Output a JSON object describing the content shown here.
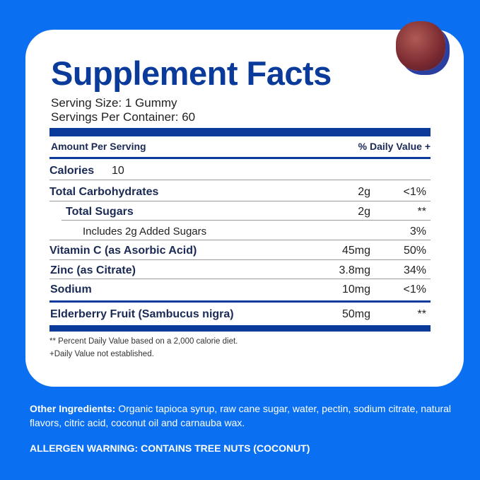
{
  "colors": {
    "background": "#0a6ff0",
    "title": "#0a3a9a",
    "card": "#ffffff"
  },
  "title": "Supplement Facts",
  "serving_size": "Serving Size: 1 Gummy",
  "servings_per_container": "Servings Per Container: 60",
  "header": {
    "amount": "Amount Per Serving",
    "dv": "% Daily Value +"
  },
  "calories": {
    "label": "Calories",
    "value": "10"
  },
  "rows": [
    {
      "name": "Total Carbohydrates",
      "amount": "2g",
      "dv": "<1%"
    },
    {
      "name": "Total Sugars",
      "amount": "2g",
      "dv": "**"
    },
    {
      "name": "Includes 2g Added Sugars",
      "amount": "",
      "dv": "3%"
    },
    {
      "name": "Vitamin C (as Asorbic Acid)",
      "amount": "45mg",
      "dv": "50%"
    },
    {
      "name": "Zinc (as Citrate)",
      "amount": "3.8mg",
      "dv": "34%"
    },
    {
      "name": "Sodium",
      "amount": "10mg",
      "dv": "<1%"
    },
    {
      "name": "Elderberry Fruit (Sambucus nigra)",
      "amount": "50mg",
      "dv": "**"
    }
  ],
  "footnotes": [
    "** Percent Daily Value based on a 2,000 calorie diet.",
    "+Daily Value not established."
  ],
  "other_ingredients": {
    "label": "Other Ingredients:",
    "text": " Organic tapioca syrup, raw cane sugar, water, pectin, sodium citrate, natural flavors, citric acid, coconut oil and carnauba wax."
  },
  "allergen": "ALLERGEN WARNING: CONTAINS TREE NUTS (COCONUT)"
}
